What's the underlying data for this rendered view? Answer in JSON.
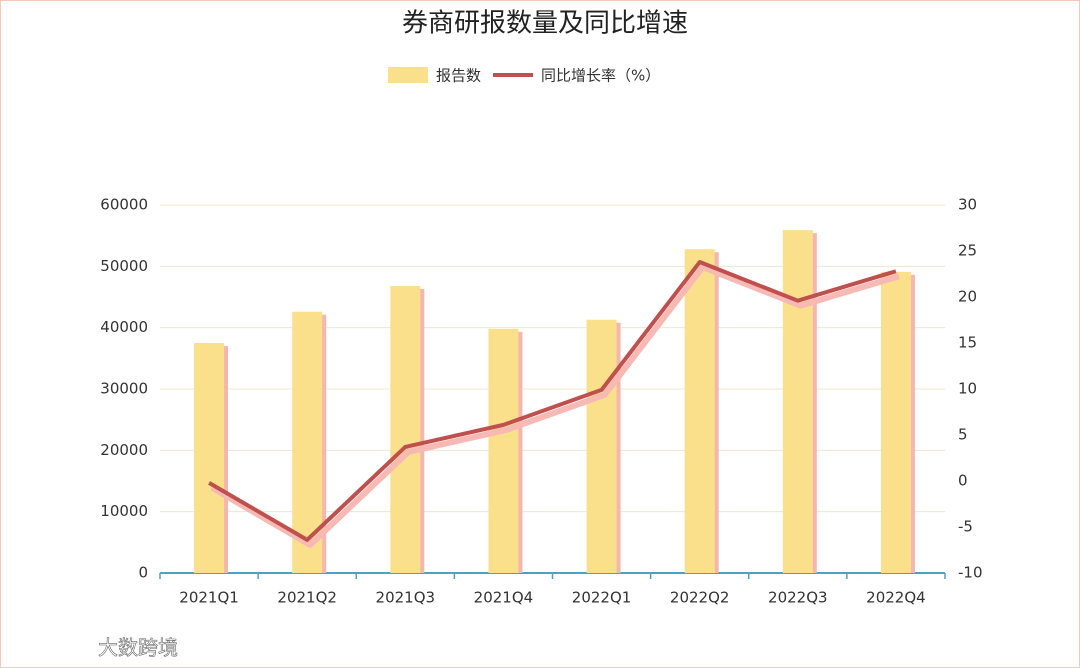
{
  "chart_data": {
    "type": "bar-line",
    "title": "券商研报数量及同比增速",
    "categories": [
      "2021Q1",
      "2021Q2",
      "2021Q3",
      "2021Q4",
      "2022Q1",
      "2022Q2",
      "2022Q3",
      "2022Q4"
    ],
    "series": [
      {
        "name": "报告数",
        "type": "bar",
        "color": "#fbe08c",
        "values": [
          37500,
          42600,
          46800,
          39800,
          41300,
          52800,
          55900,
          49100
        ]
      },
      {
        "name": "同比增长率（%）",
        "type": "line",
        "axis": "y2",
        "color": "#c0504d",
        "values": [
          -0.2,
          -6.4,
          3.7,
          6.1,
          9.9,
          23.8,
          19.6,
          22.8
        ]
      }
    ],
    "ylim": [
      0,
      60000
    ],
    "yticks": [
      0,
      10000,
      20000,
      30000,
      40000,
      50000,
      60000
    ],
    "y2lim": [
      -10,
      30
    ],
    "y2ticks": [
      -10,
      -5,
      0,
      5,
      10,
      15,
      20,
      25,
      30
    ],
    "grid": true,
    "watermark": "大数跨境"
  }
}
